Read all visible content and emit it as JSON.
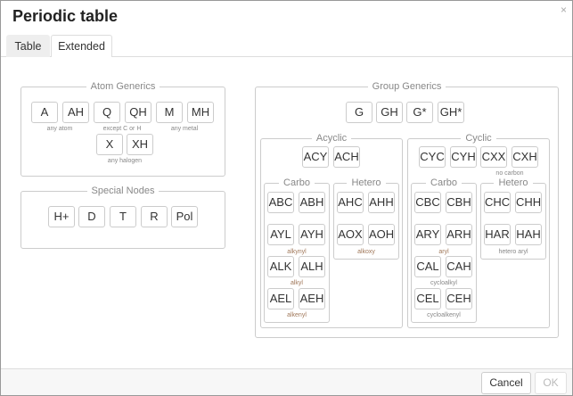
{
  "dialog": {
    "title": "Periodic table",
    "close": "×"
  },
  "tabs": [
    {
      "label": "Table",
      "active": false
    },
    {
      "label": "Extended",
      "active": true
    }
  ],
  "atom": {
    "legend": "Atom Generics",
    "buttons": [
      "A",
      "AH",
      "Q",
      "QH",
      "M",
      "MH",
      "X",
      "XH"
    ],
    "captions": [
      "any atom",
      "except C or H",
      "any metal",
      "any halogen"
    ]
  },
  "special": {
    "legend": "Special Nodes",
    "buttons": [
      "H+",
      "D",
      "T",
      "R",
      "Pol"
    ]
  },
  "group": {
    "legend": "Group Generics",
    "buttons": [
      "G",
      "GH",
      "G*",
      "GH*"
    ],
    "acyclic": {
      "legend": "Acyclic",
      "buttons": [
        "ACY",
        "ACH"
      ],
      "carbo": {
        "legend": "Carbo",
        "buttons": [
          "ABC",
          "ABH",
          "AYL",
          "AYH",
          "ALK",
          "ALH",
          "AEL",
          "AEH"
        ],
        "captions": [
          "alkynyl",
          "alkyl",
          "alkenyl"
        ]
      },
      "hetero": {
        "legend": "Hetero",
        "buttons": [
          "AHC",
          "AHH",
          "AOX",
          "AOH"
        ],
        "captions": [
          "alkoxy"
        ]
      }
    },
    "cyclic": {
      "legend": "Cyclic",
      "buttons": [
        "CYC",
        "CYH",
        "CXX",
        "CXH"
      ],
      "captions": [
        "no carbon"
      ],
      "carbo": {
        "legend": "Carbo",
        "buttons": [
          "CBC",
          "CBH",
          "ARY",
          "ARH",
          "CAL",
          "CAH",
          "CEL",
          "CEH"
        ],
        "captions": [
          "aryl",
          "cycloalkyl",
          "cycloalkenyl"
        ]
      },
      "hetero": {
        "legend": "Hetero",
        "buttons": [
          "CHC",
          "CHH",
          "HAR",
          "HAH"
        ],
        "captions": [
          "hetero aryl"
        ]
      }
    }
  },
  "footer": {
    "cancel": "Cancel",
    "ok": "OK",
    "ok_disabled": true
  }
}
